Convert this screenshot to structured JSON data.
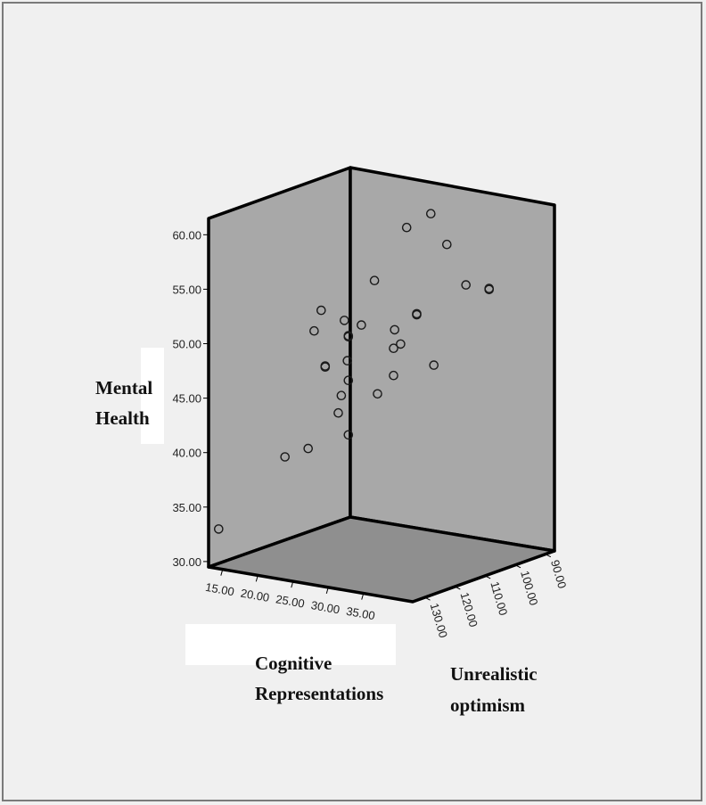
{
  "chart_data": {
    "type": "scatter3d",
    "xlabel_lines": [
      "Cognitive",
      "Representations"
    ],
    "ylabel_lines": [
      "Unrealistic",
      "optimism"
    ],
    "zlabel_lines": [
      "Mental",
      "Health"
    ],
    "x_ticks": [
      "15.00",
      "20.00",
      "25.00",
      "30.00",
      "35.00"
    ],
    "y_ticks": [
      "90.00",
      "100.00",
      "110.00",
      "120.00",
      "130.00"
    ],
    "z_ticks": [
      "30.00",
      "35.00",
      "40.00",
      "45.00",
      "50.00",
      "55.00",
      "60.00"
    ],
    "xlim": [
      13,
      42
    ],
    "ylim": [
      87,
      134
    ],
    "zlim": [
      29.5,
      61.5
    ],
    "points": [
      {
        "x": 14,
        "y": 133,
        "z": 33.0
      },
      {
        "x": 20,
        "y": 125,
        "z": 39.5
      },
      {
        "x": 22,
        "y": 122,
        "z": 40.2
      },
      {
        "x": 26,
        "y": 118,
        "z": 41.5
      },
      {
        "x": 25,
        "y": 119,
        "z": 43.5
      },
      {
        "x": 25,
        "y": 118,
        "z": 45.0
      },
      {
        "x": 28,
        "y": 113,
        "z": 45.0
      },
      {
        "x": 26,
        "y": 118,
        "z": 46.5
      },
      {
        "x": 29,
        "y": 110,
        "z": 46.5
      },
      {
        "x": 33,
        "y": 106,
        "z": 47.5
      },
      {
        "x": 24,
        "y": 121,
        "z": 47.8
      },
      {
        "x": 24,
        "y": 121,
        "z": 47.9
      },
      {
        "x": 25,
        "y": 116,
        "z": 48.0
      },
      {
        "x": 29,
        "y": 110,
        "z": 49.0
      },
      {
        "x": 30,
        "y": 110,
        "z": 49.5
      },
      {
        "x": 22,
        "y": 120,
        "z": 50.8
      },
      {
        "x": 26,
        "y": 118,
        "z": 50.5
      },
      {
        "x": 26,
        "y": 118,
        "z": 50.6
      },
      {
        "x": 30,
        "y": 112,
        "z": 51.0
      },
      {
        "x": 27,
        "y": 116,
        "z": 51.5
      },
      {
        "x": 25,
        "y": 117,
        "z": 51.8
      },
      {
        "x": 31,
        "y": 107,
        "z": 52.0
      },
      {
        "x": 31,
        "y": 107,
        "z": 52.1
      },
      {
        "x": 23,
        "y": 120,
        "z": 52.8
      },
      {
        "x": 35,
        "y": 100,
        "z": 54.5
      },
      {
        "x": 37,
        "y": 97,
        "z": 54.0
      },
      {
        "x": 37,
        "y": 97,
        "z": 54.1
      },
      {
        "x": 28,
        "y": 114,
        "z": 55.5
      },
      {
        "x": 34,
        "y": 104,
        "z": 58.5
      },
      {
        "x": 30,
        "y": 108,
        "z": 60.0
      },
      {
        "x": 33,
        "y": 107,
        "z": 61.5
      }
    ]
  }
}
